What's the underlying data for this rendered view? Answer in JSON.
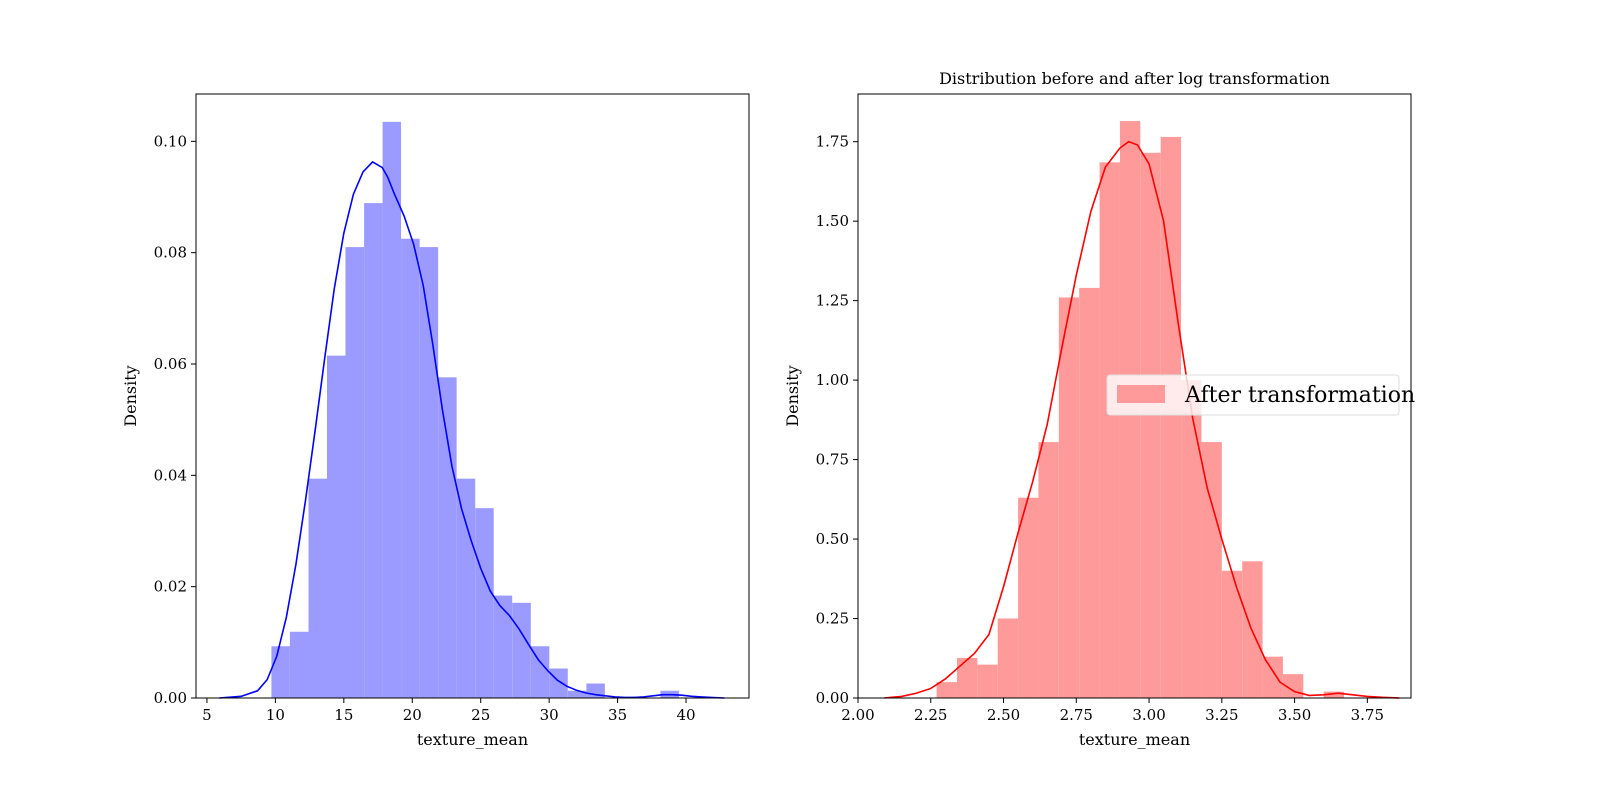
{
  "chart_data": [
    {
      "type": "histogram",
      "title": "",
      "xlabel": "texture_mean",
      "ylabel": "Density",
      "xlim": [
        4.2,
        44.6
      ],
      "ylim": [
        0,
        0.1085
      ],
      "xticks": [
        5,
        10,
        15,
        20,
        25,
        30,
        35,
        40
      ],
      "yticks": [
        0.0,
        0.02,
        0.04,
        0.06,
        0.08,
        0.1
      ],
      "xtick_labels": [
        "5",
        "10",
        "15",
        "20",
        "25",
        "30",
        "35",
        "40"
      ],
      "ytick_labels": [
        "0.00",
        "0.02",
        "0.04",
        "0.06",
        "0.08",
        "0.10"
      ],
      "bar_color": "#9b9bff",
      "line_color": "#0000ff",
      "legend": null,
      "bins": [
        {
          "x0": 9.71,
          "x1": 11.06,
          "density": 0.0093
        },
        {
          "x0": 11.06,
          "x1": 12.42,
          "density": 0.0119
        },
        {
          "x0": 12.42,
          "x1": 13.77,
          "density": 0.0394
        },
        {
          "x0": 13.77,
          "x1": 15.12,
          "density": 0.0615
        },
        {
          "x0": 15.12,
          "x1": 16.48,
          "density": 0.081
        },
        {
          "x0": 16.48,
          "x1": 17.83,
          "density": 0.0889
        },
        {
          "x0": 17.83,
          "x1": 19.18,
          "density": 0.1035
        },
        {
          "x0": 19.18,
          "x1": 20.54,
          "density": 0.0825
        },
        {
          "x0": 20.54,
          "x1": 21.89,
          "density": 0.081
        },
        {
          "x0": 21.89,
          "x1": 23.24,
          "density": 0.0576
        },
        {
          "x0": 23.24,
          "x1": 24.6,
          "density": 0.0394
        },
        {
          "x0": 24.6,
          "x1": 25.95,
          "density": 0.0341
        },
        {
          "x0": 25.95,
          "x1": 27.3,
          "density": 0.0184
        },
        {
          "x0": 27.3,
          "x1": 28.66,
          "density": 0.0171
        },
        {
          "x0": 28.66,
          "x1": 30.01,
          "density": 0.0093
        },
        {
          "x0": 30.01,
          "x1": 31.36,
          "density": 0.0053
        },
        {
          "x0": 31.36,
          "x1": 32.72,
          "density": 0.0013
        },
        {
          "x0": 32.72,
          "x1": 34.07,
          "density": 0.0026
        },
        {
          "x0": 34.07,
          "x1": 35.42,
          "density": 0.0
        },
        {
          "x0": 35.42,
          "x1": 36.78,
          "density": 0.0
        },
        {
          "x0": 36.78,
          "x1": 38.13,
          "density": 0.0
        },
        {
          "x0": 38.13,
          "x1": 39.48,
          "density": 0.0013
        }
      ],
      "kde": {
        "x": [
          5.9,
          7.5,
          8.7,
          9.4,
          10.1,
          10.8,
          11.5,
          12.2,
          12.9,
          13.6,
          14.3,
          15.0,
          15.7,
          16.4,
          17.1,
          17.8,
          18.2,
          18.7,
          19.4,
          20.1,
          20.8,
          21.5,
          22.2,
          22.9,
          23.6,
          24.3,
          25.0,
          25.7,
          26.4,
          27.1,
          27.8,
          28.5,
          29.2,
          29.9,
          30.6,
          31.3,
          32.0,
          32.7,
          33.4,
          34.1,
          34.8,
          35.5,
          36.2,
          36.9,
          37.6,
          38.3,
          39.0,
          39.7,
          40.4,
          41.1,
          41.8,
          42.8
        ],
        "y": [
          0.0,
          0.0003,
          0.0013,
          0.0033,
          0.0075,
          0.0145,
          0.024,
          0.0355,
          0.048,
          0.061,
          0.0735,
          0.0835,
          0.0905,
          0.0945,
          0.0963,
          0.0953,
          0.0936,
          0.0905,
          0.0866,
          0.0815,
          0.0741,
          0.0635,
          0.0518,
          0.0416,
          0.034,
          0.0283,
          0.0233,
          0.0192,
          0.0166,
          0.0148,
          0.0124,
          0.0096,
          0.0069,
          0.0049,
          0.0032,
          0.0021,
          0.0014,
          0.0009,
          0.0006,
          0.0004,
          0.0002,
          0.0001,
          0.0001,
          0.0002,
          0.0004,
          0.0006,
          0.0006,
          0.0005,
          0.0003,
          0.0002,
          0.0001,
          0.0
        ]
      }
    },
    {
      "type": "histogram",
      "title": "Distribution before and after log transformation",
      "xlabel": "texture_mean",
      "ylabel": "Density",
      "xlim": [
        2.0,
        3.9
      ],
      "ylim": [
        0,
        1.9
      ],
      "xticks": [
        2.0,
        2.25,
        2.5,
        2.75,
        3.0,
        3.25,
        3.5,
        3.75
      ],
      "yticks": [
        0.0,
        0.25,
        0.5,
        0.75,
        1.0,
        1.25,
        1.5,
        1.75
      ],
      "xtick_labels": [
        "2.00",
        "2.25",
        "2.50",
        "2.75",
        "3.00",
        "3.25",
        "3.50",
        "3.75"
      ],
      "ytick_labels": [
        "0.00",
        "0.25",
        "0.50",
        "0.75",
        "1.00",
        "1.25",
        "1.50",
        "1.75"
      ],
      "bar_color": "#ff9a9a",
      "line_color": "#ff0000",
      "legend": {
        "label": "After transformation",
        "color": "#ff9a9a",
        "loc": "center right"
      },
      "bins": [
        {
          "x0": 2.27,
          "x1": 2.34,
          "density": 0.05
        },
        {
          "x0": 2.34,
          "x1": 2.41,
          "density": 0.126
        },
        {
          "x0": 2.41,
          "x1": 2.48,
          "density": 0.105
        },
        {
          "x0": 2.48,
          "x1": 2.55,
          "density": 0.25
        },
        {
          "x0": 2.55,
          "x1": 2.62,
          "density": 0.63
        },
        {
          "x0": 2.62,
          "x1": 2.69,
          "density": 0.805
        },
        {
          "x0": 2.69,
          "x1": 2.76,
          "density": 1.26
        },
        {
          "x0": 2.76,
          "x1": 2.83,
          "density": 1.29
        },
        {
          "x0": 2.83,
          "x1": 2.9,
          "density": 1.685
        },
        {
          "x0": 2.9,
          "x1": 2.97,
          "density": 1.815
        },
        {
          "x0": 2.97,
          "x1": 3.04,
          "density": 1.715
        },
        {
          "x0": 3.04,
          "x1": 3.11,
          "density": 1.765
        },
        {
          "x0": 3.11,
          "x1": 3.18,
          "density": 1.0
        },
        {
          "x0": 3.18,
          "x1": 3.25,
          "density": 0.805
        },
        {
          "x0": 3.25,
          "x1": 3.32,
          "density": 0.4
        },
        {
          "x0": 3.32,
          "x1": 3.39,
          "density": 0.43
        },
        {
          "x0": 3.39,
          "x1": 3.46,
          "density": 0.13
        },
        {
          "x0": 3.46,
          "x1": 3.53,
          "density": 0.075
        },
        {
          "x0": 3.53,
          "x1": 3.6,
          "density": 0.0
        },
        {
          "x0": 3.6,
          "x1": 3.67,
          "density": 0.02
        }
      ],
      "kde": {
        "x": [
          2.09,
          2.15,
          2.2,
          2.25,
          2.3,
          2.35,
          2.4,
          2.45,
          2.5,
          2.55,
          2.6,
          2.65,
          2.7,
          2.75,
          2.8,
          2.85,
          2.9,
          2.93,
          2.96,
          3.0,
          3.05,
          3.1,
          3.15,
          3.2,
          3.25,
          3.3,
          3.35,
          3.4,
          3.45,
          3.5,
          3.55,
          3.6,
          3.65,
          3.7,
          3.75,
          3.8,
          3.86
        ],
        "y": [
          0.0,
          0.005,
          0.015,
          0.03,
          0.06,
          0.1,
          0.14,
          0.2,
          0.35,
          0.52,
          0.68,
          0.86,
          1.1,
          1.33,
          1.53,
          1.67,
          1.73,
          1.75,
          1.74,
          1.68,
          1.5,
          1.18,
          0.88,
          0.66,
          0.5,
          0.35,
          0.22,
          0.12,
          0.05,
          0.02,
          0.008,
          0.01,
          0.015,
          0.01,
          0.005,
          0.002,
          0.0
        ]
      }
    }
  ]
}
